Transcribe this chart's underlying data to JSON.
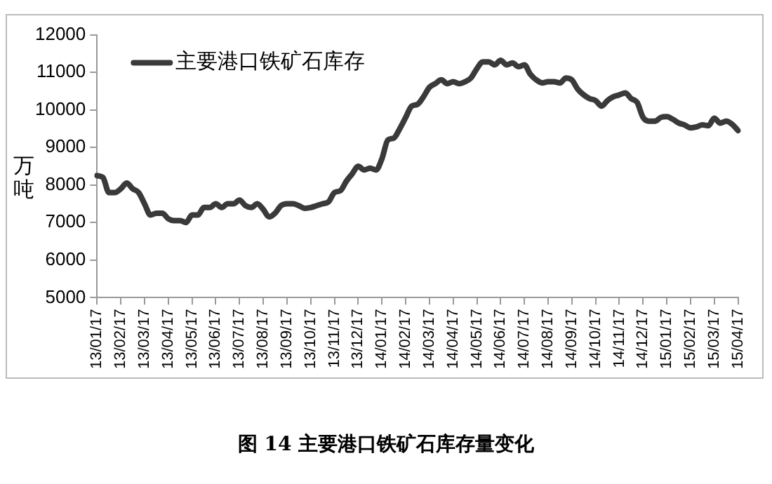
{
  "chart_data": {
    "type": "line",
    "title": "图 14 主要港口铁矿石库存量变化",
    "ylabel": "万吨",
    "categories": [
      "13/01/17",
      null,
      null,
      null,
      "13/02/17",
      null,
      null,
      null,
      "13/03/17",
      null,
      null,
      null,
      "13/04/17",
      null,
      null,
      null,
      "13/05/17",
      null,
      null,
      null,
      "13/06/17",
      null,
      null,
      null,
      "13/07/17",
      null,
      null,
      null,
      "13/08/17",
      null,
      null,
      null,
      "13/09/17",
      null,
      null,
      null,
      "13/10/17",
      null,
      null,
      null,
      "13/11/17",
      null,
      null,
      null,
      "13/12/17",
      null,
      null,
      null,
      "14/01/17",
      null,
      null,
      null,
      "14/02/17",
      null,
      null,
      null,
      "14/03/17",
      null,
      null,
      null,
      "14/04/17",
      null,
      null,
      null,
      "14/05/17",
      null,
      null,
      null,
      "14/06/17",
      null,
      null,
      null,
      "14/07/17",
      null,
      null,
      null,
      "14/08/17",
      null,
      null,
      null,
      "14/09/17",
      null,
      null,
      null,
      "14/10/17",
      null,
      null,
      null,
      "14/11/17",
      null,
      null,
      null,
      "14/12/17",
      null,
      null,
      null,
      "15/01/17",
      null,
      null,
      null,
      "15/02/17",
      null,
      null,
      null,
      "15/03/17",
      null,
      null,
      null,
      "15/04/17"
    ],
    "series": [
      {
        "name": "主要港口铁矿石库存",
        "color": "#3a3a3a",
        "values": [
          8250,
          8200,
          7800,
          7800,
          7900,
          8050,
          7900,
          7800,
          7500,
          7200,
          7250,
          7250,
          7100,
          7050,
          7050,
          7000,
          7200,
          7200,
          7400,
          7400,
          7500,
          7400,
          7500,
          7500,
          7600,
          7450,
          7400,
          7500,
          7350,
          7150,
          7250,
          7450,
          7500,
          7500,
          7450,
          7380,
          7400,
          7450,
          7500,
          7550,
          7800,
          7850,
          8100,
          8300,
          8500,
          8400,
          8450,
          8400,
          8700,
          9200,
          9250,
          9500,
          9800,
          10100,
          10150,
          10350,
          10600,
          10700,
          10800,
          10700,
          10750,
          10700,
          10750,
          10850,
          11100,
          11280,
          11280,
          11200,
          11320,
          11200,
          11250,
          11150,
          11200,
          10950,
          10800,
          10720,
          10750,
          10750,
          10720,
          10850,
          10800,
          10550,
          10400,
          10300,
          10250,
          10100,
          10250,
          10350,
          10400,
          10450,
          10300,
          10200,
          9800,
          9700,
          9700,
          9800,
          9820,
          9750,
          9650,
          9600,
          9520,
          9550,
          9600,
          9580,
          9780,
          9650,
          9700,
          9620,
          9450
        ]
      }
    ],
    "ylim": [
      5000,
      12000
    ],
    "yticks": [
      5000,
      6000,
      7000,
      8000,
      9000,
      10000,
      11000,
      12000
    ],
    "grid": false,
    "legend": "top left",
    "marker": "none",
    "line_style": "solid"
  }
}
